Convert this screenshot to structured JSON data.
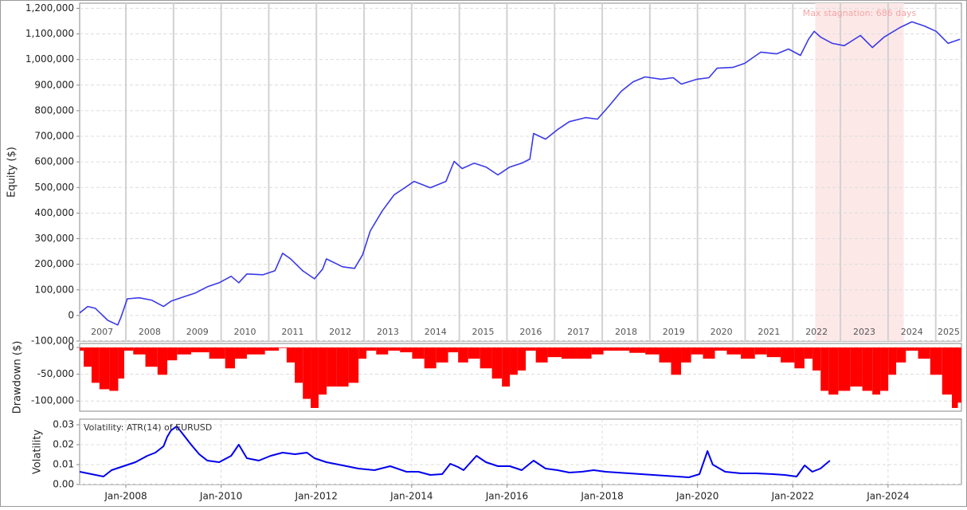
{
  "chart_data": [
    {
      "type": "line",
      "ylabel": "Equity ($)",
      "color": "#3a3ae8",
      "grid": true,
      "xlim": [
        2007.03,
        2025.54
      ],
      "ylim": [
        -100000,
        1220000
      ],
      "yticks": [
        {
          "value": -100000,
          "label": "-100,000"
        },
        0,
        {
          "value": 100000,
          "label": "100,000"
        },
        {
          "value": 200000,
          "label": "200,000"
        },
        {
          "value": 300000,
          "label": "300,000"
        },
        {
          "value": 400000,
          "label": "400,000"
        },
        {
          "value": 500000,
          "label": "500,000"
        },
        {
          "value": 600000,
          "label": "600,000"
        },
        {
          "value": 700000,
          "label": "700,000"
        },
        {
          "value": 800000,
          "label": "800,000"
        },
        {
          "value": 900000,
          "label": "900,000"
        },
        {
          "value": 1000000,
          "label": "1,000,000"
        },
        {
          "value": 1100000,
          "label": "1,100,000"
        },
        {
          "value": 1200000,
          "label": "1,200,000"
        }
      ],
      "xticks": [
        2007,
        2008,
        2009,
        2010,
        2011,
        2012,
        2013,
        2014,
        2015,
        2016,
        2017,
        2018,
        2019,
        2020,
        2021,
        2022,
        2023,
        2024,
        2025
      ],
      "annotation": {
        "text": "Max stagnation: 686 days",
        "x": [
          2022.47,
          2024.33
        ]
      },
      "x": [
        2007.03,
        2007.2,
        2007.36,
        2007.62,
        2007.83,
        2007.9,
        2008.03,
        2008.28,
        2008.54,
        2008.79,
        2008.95,
        2009.2,
        2009.45,
        2009.71,
        2009.96,
        2010.21,
        2010.37,
        2010.54,
        2010.88,
        2011.13,
        2011.29,
        2011.46,
        2011.71,
        2011.96,
        2012.13,
        2012.21,
        2012.55,
        2012.8,
        2012.97,
        2013.13,
        2013.38,
        2013.63,
        2013.88,
        2014.05,
        2014.39,
        2014.72,
        2014.89,
        2015.06,
        2015.31,
        2015.56,
        2015.81,
        2016.06,
        2016.31,
        2016.48,
        2016.56,
        2016.81,
        2017.06,
        2017.31,
        2017.65,
        2017.9,
        2018.15,
        2018.4,
        2018.65,
        2018.9,
        2019.24,
        2019.49,
        2019.66,
        2019.99,
        2020.24,
        2020.41,
        2020.74,
        2020.99,
        2021.33,
        2021.66,
        2021.91,
        2022.16,
        2022.33,
        2022.45,
        2022.58,
        2022.83,
        2023.08,
        2023.42,
        2023.67,
        2023.92,
        2024.25,
        2024.5,
        2024.76,
        2025.01,
        2025.26,
        2025.51
      ],
      "values": [
        10000,
        35000,
        28000,
        -19000,
        -37000,
        -6000,
        65000,
        69000,
        60000,
        35000,
        56000,
        72000,
        87000,
        112000,
        128000,
        153000,
        128000,
        162000,
        159000,
        175000,
        243000,
        221000,
        175000,
        143000,
        181000,
        221000,
        190000,
        184000,
        237000,
        330000,
        408000,
        471000,
        502000,
        524000,
        499000,
        524000,
        602000,
        574000,
        595000,
        580000,
        549000,
        580000,
        595000,
        611000,
        711000,
        689000,
        726000,
        757000,
        773000,
        767000,
        820000,
        876000,
        913000,
        932000,
        923000,
        929000,
        904000,
        923000,
        929000,
        966000,
        969000,
        985000,
        1029000,
        1022000,
        1041000,
        1016000,
        1079000,
        1110000,
        1088000,
        1063000,
        1054000,
        1094000,
        1047000,
        1088000,
        1125000,
        1147000,
        1131000,
        1110000,
        1063000,
        1079000
      ]
    },
    {
      "type": "bar",
      "ylabel": "Drawdown ($)",
      "color": "#ff0000",
      "grid": true,
      "xlim": [
        2007.03,
        2025.54
      ],
      "ylim": [
        -119000,
        7500
      ],
      "yticks": [
        {
          "value": -100000,
          "label": "-100,000"
        },
        {
          "value": -50000,
          "label": "-50,000"
        },
        0
      ],
      "x": [
        2007.03,
        2007.2,
        2007.36,
        2007.53,
        2007.78,
        2007.9,
        2008.03,
        2008.28,
        2008.54,
        2008.79,
        2008.95,
        2009.2,
        2009.54,
        2009.96,
        2010.21,
        2010.37,
        2010.71,
        2011.13,
        2011.29,
        2011.46,
        2011.63,
        2011.8,
        2011.96,
        2012.13,
        2012.3,
        2012.55,
        2012.8,
        2012.97,
        2013.13,
        2013.38,
        2013.63,
        2013.88,
        2014.14,
        2014.39,
        2014.64,
        2014.89,
        2015.06,
        2015.31,
        2015.56,
        2015.81,
        2015.98,
        2016.14,
        2016.31,
        2016.48,
        2016.73,
        2016.98,
        2017.31,
        2017.65,
        2017.9,
        2018.15,
        2018.4,
        2018.74,
        2019.07,
        2019.32,
        2019.57,
        2019.74,
        2019.99,
        2020.24,
        2020.49,
        2020.74,
        2021.08,
        2021.33,
        2021.58,
        2021.91,
        2022.16,
        2022.33,
        2022.5,
        2022.67,
        2022.83,
        2023.08,
        2023.33,
        2023.59,
        2023.75,
        2023.92,
        2024.09,
        2024.25,
        2024.5,
        2024.76,
        2025.01,
        2025.26,
        2025.42,
        2025.51
      ],
      "values": [
        -6000,
        -36000,
        -66000,
        -78000,
        -81000,
        -58000,
        -6000,
        -13000,
        -36000,
        -51000,
        -24000,
        -13000,
        -9000,
        -21000,
        -39000,
        -21000,
        -13000,
        -6000,
        -1000,
        -28000,
        -66000,
        -96000,
        -113000,
        -88000,
        -73000,
        -73000,
        -66000,
        -21000,
        -6000,
        -13000,
        -6000,
        -9000,
        -21000,
        -39000,
        -28000,
        -9000,
        -28000,
        -21000,
        -39000,
        -58000,
        -73000,
        -51000,
        -43000,
        -6000,
        -28000,
        -18000,
        -21000,
        -21000,
        -13000,
        -6000,
        -6000,
        -10000,
        -13000,
        -28000,
        -51000,
        -28000,
        -13000,
        -21000,
        -6000,
        -13000,
        -21000,
        -13000,
        -18000,
        -28000,
        -39000,
        -21000,
        -43000,
        -81000,
        -88000,
        -81000,
        -73000,
        -81000,
        -88000,
        -81000,
        -51000,
        -28000,
        -6000,
        -21000,
        -51000,
        -88000,
        -113000,
        -103000
      ]
    },
    {
      "type": "line",
      "ylabel": "Volatility",
      "color": "#0000ee",
      "grid": true,
      "annotation": {
        "text": "Volatility: ATR(14) of EURUSD"
      },
      "xlim": [
        2007.03,
        2025.54
      ],
      "ylim": [
        0,
        0.0328
      ],
      "yticks": [
        {
          "value": 0,
          "label": "0.00"
        },
        0.01,
        0.02,
        0.03
      ],
      "xticks": [
        {
          "value": 2008,
          "label": "Jan-2008"
        },
        {
          "value": 2010,
          "label": "Jan-2010"
        },
        {
          "value": 2012,
          "label": "Jan-2012"
        },
        {
          "value": 2014,
          "label": "Jan-2014"
        },
        {
          "value": 2016,
          "label": "Jan-2016"
        },
        {
          "value": 2018,
          "label": "Jan-2018"
        },
        {
          "value": 2020,
          "label": "Jan-2020"
        },
        {
          "value": 2022,
          "label": "Jan-2022"
        },
        {
          "value": 2024,
          "label": "Jan-2024"
        }
      ],
      "x": [
        2007.03,
        2007.28,
        2007.53,
        2007.7,
        2007.95,
        2008.2,
        2008.45,
        2008.62,
        2008.79,
        2008.87,
        2008.95,
        2009.07,
        2009.2,
        2009.37,
        2009.54,
        2009.71,
        2009.96,
        2010.21,
        2010.37,
        2010.54,
        2010.79,
        2011.04,
        2011.29,
        2011.55,
        2011.8,
        2011.96,
        2012.21,
        2012.55,
        2012.88,
        2013.22,
        2013.55,
        2013.89,
        2014.14,
        2014.39,
        2014.64,
        2014.81,
        2014.97,
        2015.09,
        2015.36,
        2015.56,
        2015.81,
        2016.06,
        2016.31,
        2016.56,
        2016.81,
        2017.06,
        2017.31,
        2017.57,
        2017.82,
        2018.07,
        2018.32,
        2018.57,
        2018.82,
        2019.07,
        2019.32,
        2019.57,
        2019.82,
        2020.04,
        2020.21,
        2020.32,
        2020.58,
        2020.91,
        2021.24,
        2021.58,
        2021.83,
        2022.08,
        2022.25,
        2022.41,
        2022.58,
        2022.78
      ],
      "values": [
        0.0064,
        0.0052,
        0.004,
        0.0072,
        0.0092,
        0.0112,
        0.0144,
        0.016,
        0.0192,
        0.024,
        0.0272,
        0.0292,
        0.0252,
        0.02,
        0.0152,
        0.012,
        0.0112,
        0.0144,
        0.02,
        0.0132,
        0.012,
        0.0144,
        0.016,
        0.0152,
        0.016,
        0.0132,
        0.0112,
        0.0096,
        0.008,
        0.0072,
        0.0092,
        0.0064,
        0.0064,
        0.0048,
        0.0052,
        0.0104,
        0.0088,
        0.0072,
        0.0144,
        0.0112,
        0.0092,
        0.0092,
        0.0072,
        0.012,
        0.008,
        0.0072,
        0.006,
        0.0064,
        0.0072,
        0.0064,
        0.006,
        0.0056,
        0.0052,
        0.0048,
        0.0044,
        0.004,
        0.0036,
        0.0052,
        0.0168,
        0.01,
        0.0064,
        0.0056,
        0.0056,
        0.0052,
        0.0048,
        0.004,
        0.0096,
        0.0064,
        0.008,
        0.012
      ]
    }
  ]
}
